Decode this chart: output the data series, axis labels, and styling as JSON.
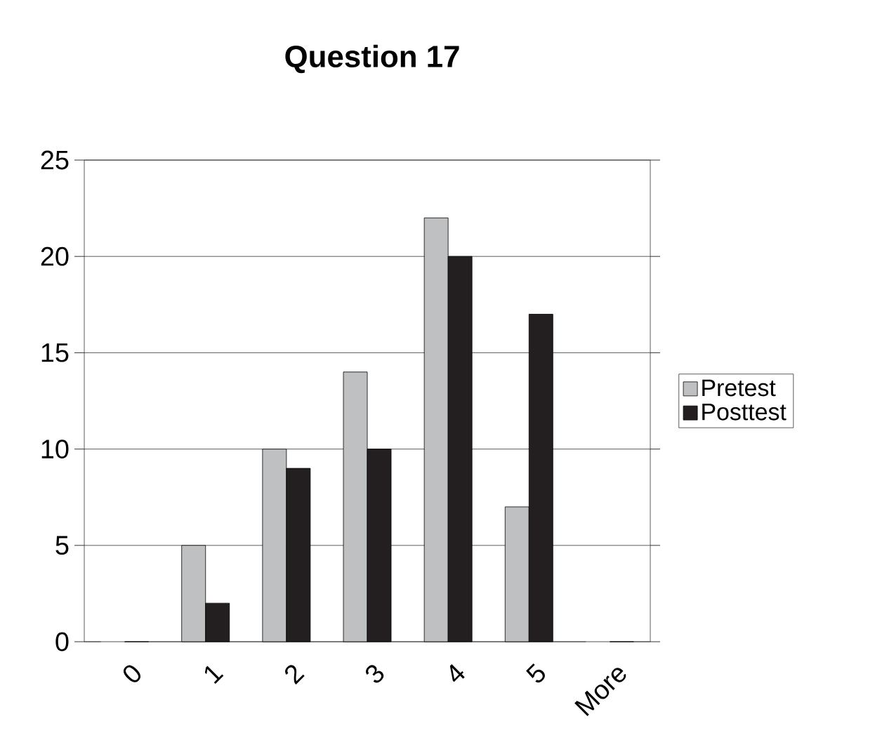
{
  "chart_data": {
    "type": "bar",
    "title": "Question 17",
    "categories": [
      "0",
      "1",
      "2",
      "3",
      "4",
      "5",
      "More"
    ],
    "series": [
      {
        "name": "Pretest",
        "color": "#bfc0c2",
        "values": [
          0,
          5,
          10,
          14,
          22,
          7,
          0
        ]
      },
      {
        "name": "Posttest",
        "color": "#231f20",
        "values": [
          0,
          2,
          9,
          10,
          20,
          17,
          0
        ]
      }
    ],
    "ylim": [
      0,
      25
    ],
    "yticks": [
      0,
      5,
      10,
      15,
      20,
      25
    ],
    "grid": "y",
    "legend": "right"
  }
}
